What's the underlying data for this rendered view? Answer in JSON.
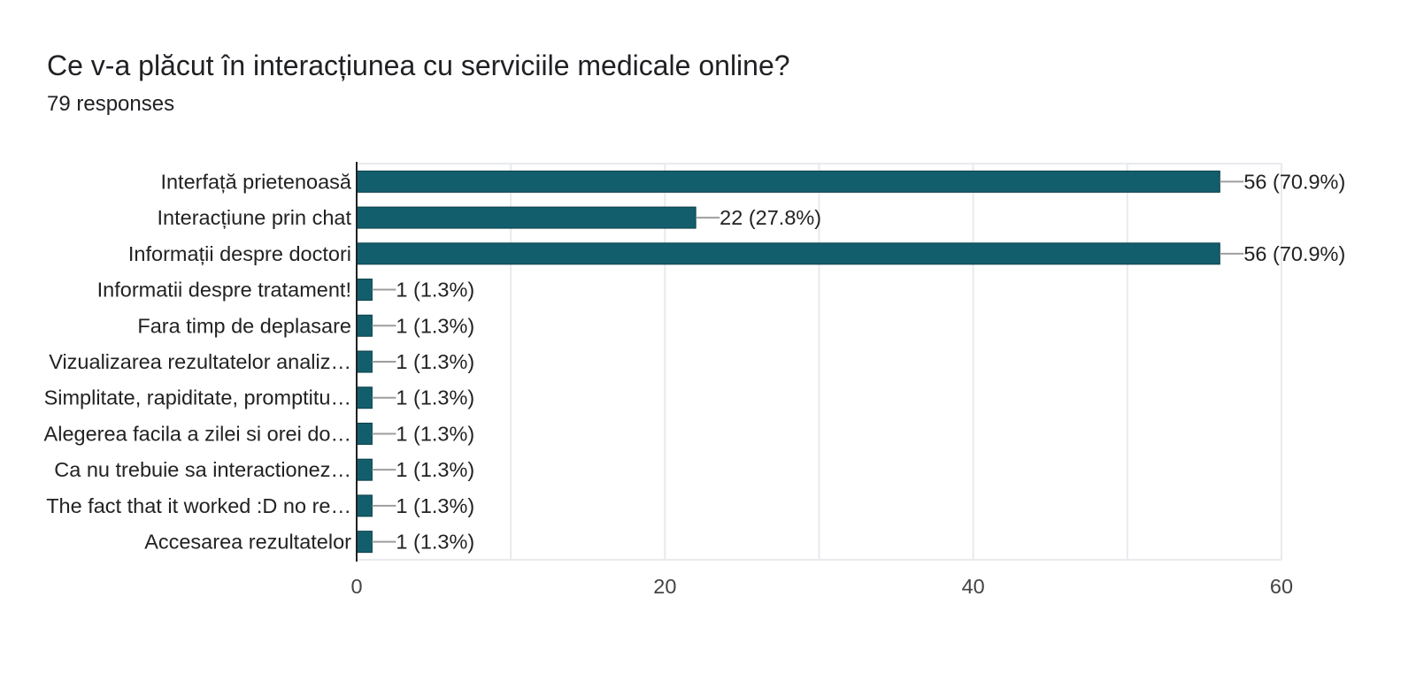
{
  "header": {
    "title": "Ce v-a plăcut în interacțiunea cu serviciile medicale online?",
    "responses": "79 responses"
  },
  "colors": {
    "bar": "#135e6c",
    "grid": "#e8eaed",
    "axis": "#222222",
    "leader": "#9e9e9e"
  },
  "chart_data": {
    "type": "bar",
    "orientation": "horizontal",
    "categories": [
      "Interfață prietenoasă",
      "Interacțiune prin chat",
      "Informații despre doctori",
      "Informatii despre tratament!",
      "Fara timp de deplasare",
      "Vizualizarea rezultatelor analiz…",
      "Simplitate, rapiditate, promptitu…",
      "Alegerea facila a zilei si orei do…",
      "Ca nu trebuie sa interactionez…",
      "The fact that it worked :D no re…",
      "Accesarea rezultatelor"
    ],
    "values": [
      56,
      22,
      56,
      1,
      1,
      1,
      1,
      1,
      1,
      1,
      1
    ],
    "data_labels": [
      "56 (70.9%)",
      "22 (27.8%)",
      "56 (70.9%)",
      "1 (1.3%)",
      "1 (1.3%)",
      "1 (1.3%)",
      "1 (1.3%)",
      "1 (1.3%)",
      "1 (1.3%)",
      "1 (1.3%)",
      "1 (1.3%)"
    ],
    "xlim": [
      0,
      60
    ],
    "xticks": [
      0,
      20,
      40,
      60
    ],
    "grid": true
  }
}
